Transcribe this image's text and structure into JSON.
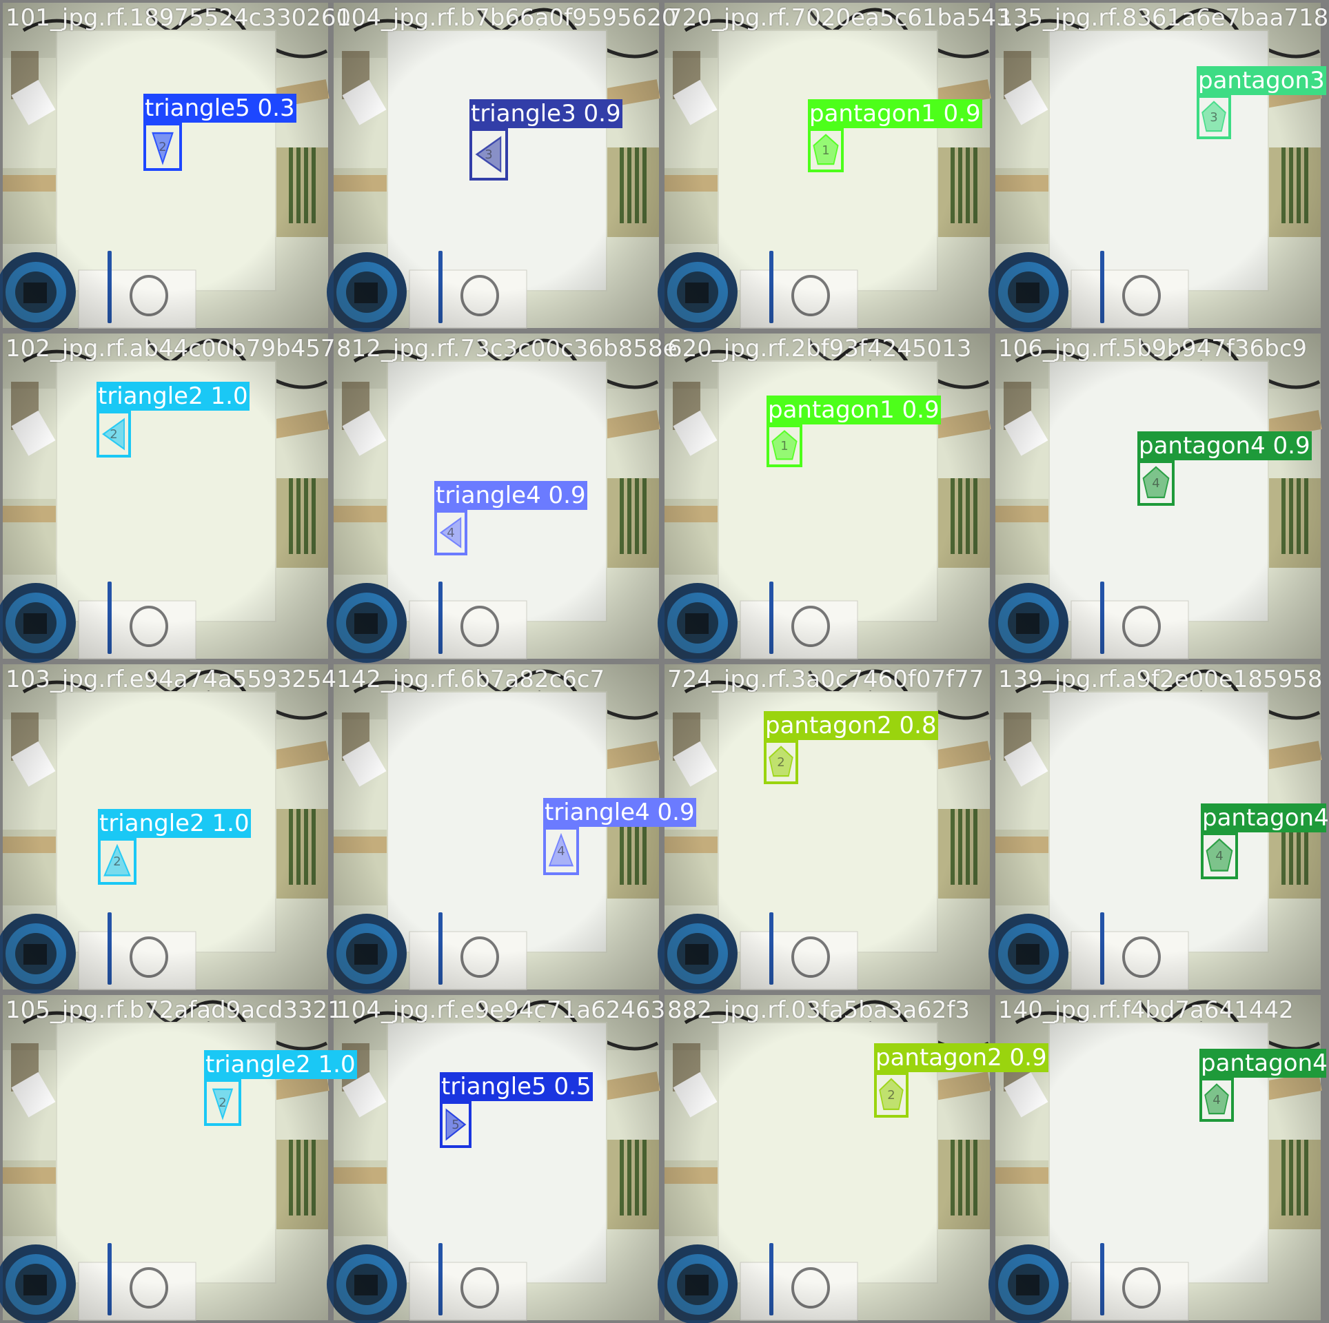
{
  "tiles": [
    {
      "filename": "101_jpg.rf.18975524c330260",
      "label": "triangle5 0.3",
      "color": "#1d47ff",
      "shape": "triangle-down",
      "num": "2"
    },
    {
      "filename": "104_jpg.rf.b7b66a0f9595620",
      "label": "triangle3 0.9",
      "color": "#323ea8",
      "shape": "triangle-left",
      "num": "3"
    },
    {
      "filename": "720_jpg.rf.7020ea5c61ba543",
      "label": "pantagon1 0.9",
      "color": "#4dff1a",
      "shape": "pentagon",
      "num": "1"
    },
    {
      "filename": "135_jpg.rf.8361a6e7baa718",
      "label": "pantagon3",
      "color": "#3ddc84",
      "shape": "pentagon",
      "num": "3"
    },
    {
      "filename": "102_jpg.rf.ab44c00b79b457",
      "label": "triangle2 1.0",
      "color": "#1ac8f5",
      "shape": "triangle-left",
      "num": "2"
    },
    {
      "filename": "812_jpg.rf.73c3c00c36b858e",
      "label": "triangle4 0.9",
      "color": "#6b7bff",
      "shape": "triangle-left",
      "num": "4"
    },
    {
      "filename": "620_jpg.rf.2bf93f4245013",
      "label": "pantagon1 0.9",
      "color": "#4dff1a",
      "shape": "pentagon",
      "num": "1"
    },
    {
      "filename": "106_jpg.rf.5b9b947f36bc9",
      "label": "pantagon4 0.9",
      "color": "#1e9a3a",
      "shape": "pentagon",
      "num": "4"
    },
    {
      "filename": "103_jpg.rf.e94a74a5593254",
      "label": "triangle2 1.0",
      "color": "#1ac8f5",
      "shape": "triangle-up",
      "num": "2"
    },
    {
      "filename": "142_jpg.rf.6b7a82c6c7",
      "label": "triangle4 0.9",
      "color": "#6b7bff",
      "shape": "triangle-up",
      "num": "4"
    },
    {
      "filename": "724_jpg.rf.3a0c7460f07f77",
      "label": "pantagon2 0.8",
      "color": "#9ad40e",
      "shape": "pentagon",
      "num": "2"
    },
    {
      "filename": "139_jpg.rf.a9f2e00e185958",
      "label": "pantagon4",
      "color": "#1e9a3a",
      "shape": "pentagon",
      "num": "4"
    },
    {
      "filename": "105_jpg.rf.b72afad9acd3321",
      "label": "triangle2 1.0",
      "color": "#1ac8f5",
      "shape": "triangle-down",
      "num": "2"
    },
    {
      "filename": "104_jpg.rf.e9e94c71a62463",
      "label": "triangle5 0.5",
      "color": "#1a35e0",
      "shape": "triangle-right",
      "num": "5"
    },
    {
      "filename": "882_jpg.rf.03fa5ba3a62f3",
      "label": "pantagon2 0.9",
      "color": "#9ad40e",
      "shape": "pentagon",
      "num": "2"
    },
    {
      "filename": "140_jpg.rf.f4bd7a641442",
      "label": "pantagon4",
      "color": "#1e9a3a",
      "shape": "pentagon",
      "num": "4"
    }
  ]
}
